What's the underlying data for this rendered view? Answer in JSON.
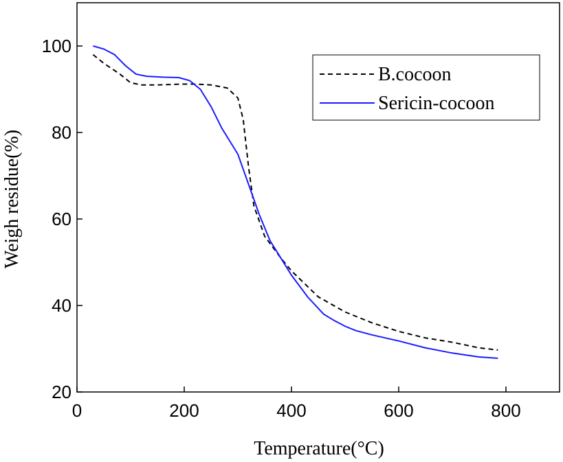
{
  "chart_data": {
    "type": "line",
    "x_label": "Temperature(°C)",
    "y_label": "Weigh residue(%)",
    "xlim": [
      0,
      900
    ],
    "xticks": [
      0,
      200,
      400,
      600,
      800
    ],
    "ylim": [
      20,
      110
    ],
    "yticks": [
      20,
      40,
      60,
      80,
      100
    ],
    "legend": "top-right",
    "series": [
      {
        "name": "B.cocoon",
        "color": "#000000",
        "line_style": "dashed",
        "x": [
          30,
          50,
          80,
          100,
          120,
          150,
          200,
          220,
          250,
          280,
          300,
          310,
          320,
          330,
          350,
          380,
          400,
          450,
          500,
          550,
          600,
          650,
          700,
          750,
          785
        ],
        "values": [
          98,
          96,
          93.5,
          91.5,
          91,
          91,
          91.2,
          91.2,
          91,
          90.3,
          88,
          83,
          72,
          63,
          56,
          51,
          48,
          42,
          38.5,
          36,
          34,
          32.5,
          31.5,
          30.2,
          29.7
        ]
      },
      {
        "name": "Sericin-cocoon",
        "color": "#1a1aff",
        "line_style": "solid",
        "x": [
          30,
          50,
          70,
          90,
          110,
          130,
          160,
          190,
          210,
          230,
          250,
          270,
          300,
          320,
          340,
          360,
          380,
          400,
          430,
          460,
          480,
          500,
          520,
          550,
          600,
          650,
          700,
          750,
          785
        ],
        "values": [
          100,
          99.3,
          98,
          95.5,
          93.5,
          93,
          92.8,
          92.7,
          92,
          90,
          86,
          81,
          75,
          68,
          61,
          55,
          51,
          47,
          42,
          38,
          36.5,
          35.2,
          34.2,
          33.2,
          31.8,
          30.2,
          29,
          28.1,
          27.8
        ]
      }
    ]
  }
}
